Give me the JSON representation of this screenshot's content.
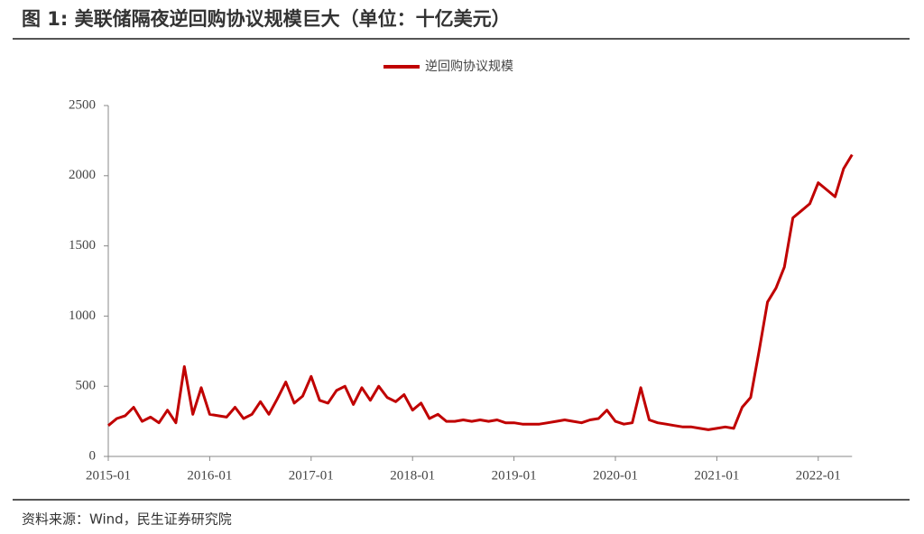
{
  "title": "图 1:  美联储隔夜逆回购协议规模巨大（单位：十亿美元）",
  "source": "资料来源：Wind，民生证券研究院",
  "chart_data": {
    "type": "line",
    "x": [
      "2015-01",
      "2015-02",
      "2015-03",
      "2015-04",
      "2015-05",
      "2015-06",
      "2015-07",
      "2015-08",
      "2015-09",
      "2015-10",
      "2015-11",
      "2015-12",
      "2016-01",
      "2016-02",
      "2016-03",
      "2016-04",
      "2016-05",
      "2016-06",
      "2016-07",
      "2016-08",
      "2016-09",
      "2016-10",
      "2016-11",
      "2016-12",
      "2017-01",
      "2017-02",
      "2017-03",
      "2017-04",
      "2017-05",
      "2017-06",
      "2017-07",
      "2017-08",
      "2017-09",
      "2017-10",
      "2017-11",
      "2017-12",
      "2018-01",
      "2018-02",
      "2018-03",
      "2018-04",
      "2018-05",
      "2018-06",
      "2018-07",
      "2018-08",
      "2018-09",
      "2018-10",
      "2018-11",
      "2018-12",
      "2019-01",
      "2019-02",
      "2019-03",
      "2019-04",
      "2019-05",
      "2019-06",
      "2019-07",
      "2019-08",
      "2019-09",
      "2019-10",
      "2019-11",
      "2019-12",
      "2020-01",
      "2020-02",
      "2020-03",
      "2020-04",
      "2020-05",
      "2020-06",
      "2020-07",
      "2020-08",
      "2020-09",
      "2020-10",
      "2020-11",
      "2020-12",
      "2021-01",
      "2021-02",
      "2021-03",
      "2021-04",
      "2021-05",
      "2021-06",
      "2021-07",
      "2021-08",
      "2021-09",
      "2021-10",
      "2021-11",
      "2021-12",
      "2022-01",
      "2022-02",
      "2022-03",
      "2022-04",
      "2022-05"
    ],
    "series": [
      {
        "name": "逆回购协议规模",
        "color": "#c00000",
        "values": [
          220,
          270,
          290,
          350,
          250,
          280,
          240,
          330,
          240,
          640,
          300,
          490,
          300,
          290,
          280,
          350,
          270,
          300,
          390,
          300,
          410,
          530,
          380,
          430,
          570,
          400,
          380,
          470,
          500,
          370,
          490,
          400,
          500,
          420,
          390,
          440,
          330,
          380,
          270,
          300,
          250,
          250,
          260,
          250,
          260,
          250,
          260,
          240,
          240,
          230,
          230,
          230,
          240,
          250,
          260,
          250,
          240,
          260,
          270,
          330,
          250,
          230,
          240,
          490,
          260,
          240,
          230,
          220,
          210,
          210,
          200,
          190,
          200,
          210,
          200,
          350,
          420,
          750,
          1100,
          1200,
          1350,
          1700,
          1750,
          1800,
          1950,
          1900,
          1850,
          2050,
          2150
        ]
      }
    ],
    "ylim": [
      0,
      2500
    ],
    "yticks": [
      0,
      500,
      1000,
      1500,
      2000,
      2500
    ],
    "xticks": [
      "2015-01",
      "2016-01",
      "2017-01",
      "2018-01",
      "2019-01",
      "2020-01",
      "2021-01",
      "2022-01"
    ],
    "legend": "top"
  }
}
